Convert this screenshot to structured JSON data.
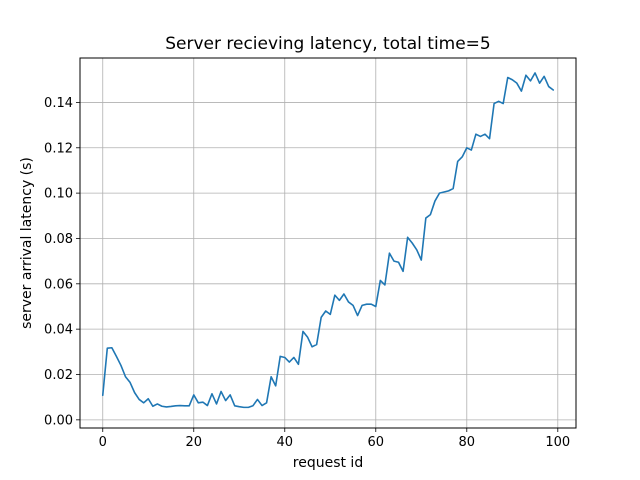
{
  "chart_data": {
    "type": "line",
    "title": "Server recieving latency, total time=5",
    "xlabel": "request id",
    "ylabel": "server arrival latency (s)",
    "xlim": [
      -5,
      104
    ],
    "ylim": [
      -0.0036,
      0.1596
    ],
    "x_ticks": [
      0,
      20,
      40,
      60,
      80,
      100
    ],
    "y_ticks": [
      0.0,
      0.02,
      0.04,
      0.06,
      0.08,
      0.1,
      0.12,
      0.14
    ],
    "x_tick_labels": [
      "0",
      "20",
      "40",
      "60",
      "80",
      "100"
    ],
    "y_tick_labels": [
      "0.00",
      "0.02",
      "0.04",
      "0.06",
      "0.08",
      "0.10",
      "0.12",
      "0.14"
    ],
    "grid": true,
    "line_color": "#1f77b4",
    "series": [
      {
        "name": "latency",
        "values": [
          0.0108,
          0.0316,
          0.0318,
          0.028,
          0.024,
          0.019,
          0.0165,
          0.012,
          0.009,
          0.0075,
          0.0093,
          0.006,
          0.007,
          0.006,
          0.0057,
          0.0059,
          0.0062,
          0.0063,
          0.0062,
          0.0062,
          0.011,
          0.0075,
          0.0078,
          0.0063,
          0.0115,
          0.007,
          0.0125,
          0.0085,
          0.011,
          0.0062,
          0.0058,
          0.0055,
          0.0055,
          0.0062,
          0.009,
          0.0063,
          0.0075,
          0.019,
          0.015,
          0.028,
          0.0275,
          0.0255,
          0.0275,
          0.0245,
          0.039,
          0.0365,
          0.0322,
          0.0332,
          0.0452,
          0.048,
          0.0465,
          0.055,
          0.0527,
          0.0555,
          0.052,
          0.0505,
          0.046,
          0.0505,
          0.051,
          0.051,
          0.05,
          0.0615,
          0.0595,
          0.0735,
          0.07,
          0.0695,
          0.0655,
          0.0805,
          0.078,
          0.075,
          0.0705,
          0.089,
          0.0905,
          0.0965,
          0.1,
          0.1005,
          0.101,
          0.102,
          0.114,
          0.116,
          0.12,
          0.119,
          0.126,
          0.125,
          0.126,
          0.124,
          0.1395,
          0.1405,
          0.1395,
          0.151,
          0.15,
          0.1485,
          0.145,
          0.152,
          0.1495,
          0.153,
          0.1485,
          0.1515,
          0.147,
          0.1455
        ]
      }
    ]
  }
}
